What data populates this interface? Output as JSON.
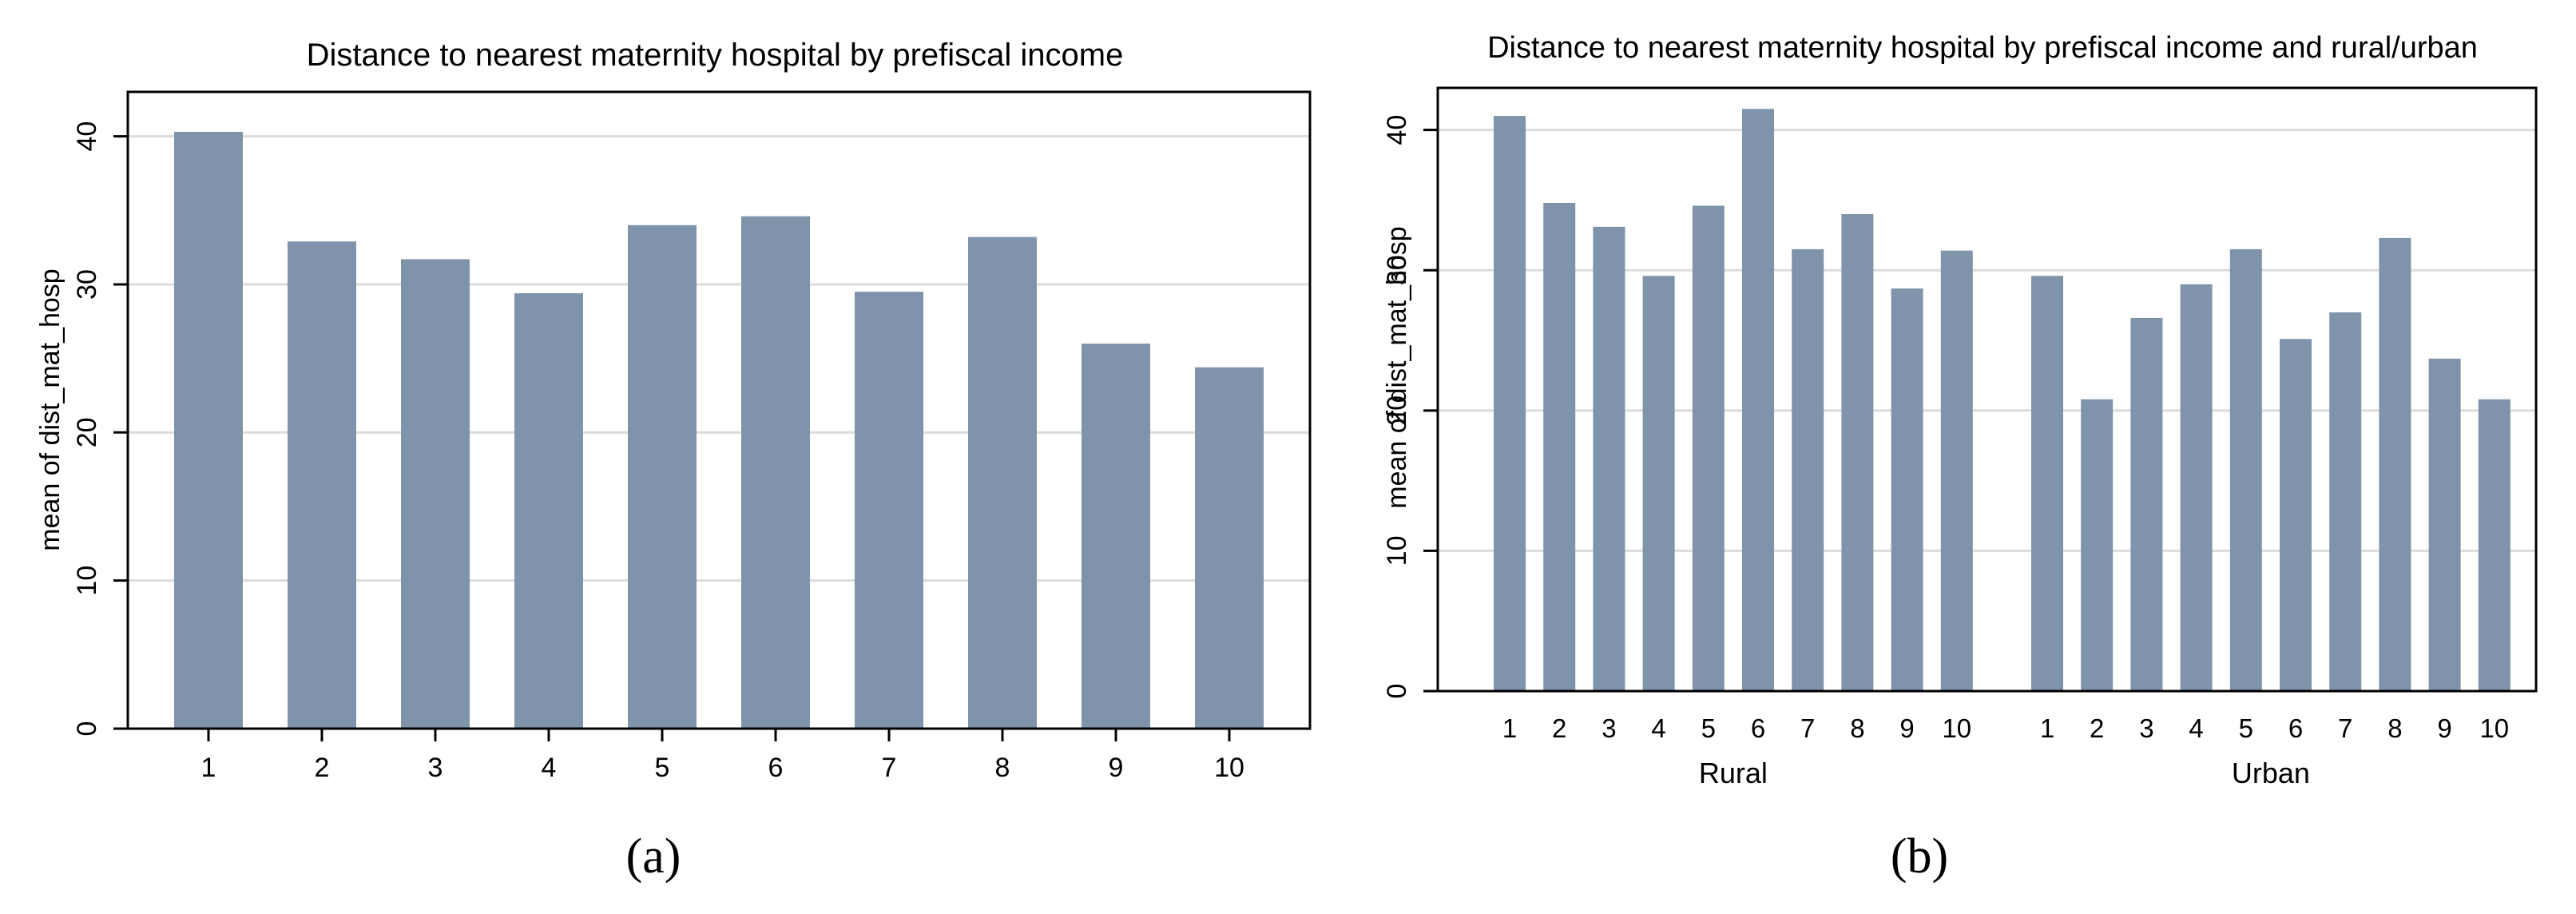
{
  "bar_color": "#7f93aa",
  "grid_color": "#dcdcdc",
  "chart_data": [
    {
      "type": "bar",
      "title": "Distance to nearest maternity hospital by prefiscal income",
      "ylabel": "mean of dist_mat_hosp",
      "xlabel": "",
      "ylim": [
        0,
        43
      ],
      "yticks": [
        0,
        10,
        20,
        30,
        40
      ],
      "grid": true,
      "categories": [
        "1",
        "2",
        "3",
        "4",
        "5",
        "6",
        "7",
        "8",
        "9",
        "10"
      ],
      "values": [
        40.3,
        32.9,
        31.7,
        29.4,
        34.0,
        34.6,
        29.5,
        33.2,
        26.0,
        24.4
      ],
      "caption": "(a)"
    },
    {
      "type": "bar",
      "title": "Distance to nearest maternity hospital by prefiscal income and rural/urban",
      "ylabel": "mean of dist_mat_hosp",
      "xlabel": "",
      "ylim": [
        0,
        43
      ],
      "yticks": [
        0,
        10,
        20,
        30,
        40
      ],
      "grid": true,
      "categories": [
        "1",
        "2",
        "3",
        "4",
        "5",
        "6",
        "7",
        "8",
        "9",
        "10"
      ],
      "groups": [
        {
          "label": "Rural",
          "values": [
            41.0,
            34.8,
            33.1,
            29.6,
            34.6,
            41.5,
            31.5,
            34.0,
            28.7,
            31.4
          ]
        },
        {
          "label": "Urban",
          "values": [
            29.6,
            20.8,
            26.6,
            29.0,
            31.5,
            25.1,
            27.0,
            32.3,
            23.7,
            20.8
          ]
        }
      ],
      "caption": "(b)"
    }
  ]
}
